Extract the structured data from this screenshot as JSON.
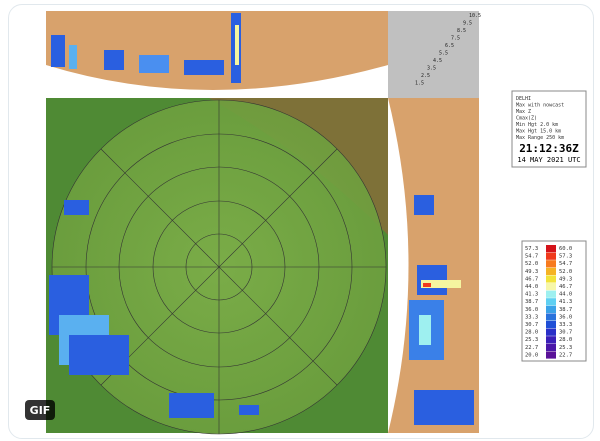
{
  "badge": "GIF",
  "info": {
    "lines": [
      "DELHI",
      "Max with nowcast",
      "Max Z",
      "Cmax(Z)",
      "Min Hgt 2.0 km",
      "Max Hgt 15.0 km",
      "Max Range 250 km"
    ],
    "time": "21:12:36Z",
    "date": "14 MAY 2021 UTC"
  },
  "altitude_labels": [
    "10.5",
    "9.5",
    "8.5",
    "7.5",
    "6.5",
    "5.5",
    "4.5",
    "3.5",
    "2.5",
    "1.5"
  ],
  "legend": {
    "left": [
      "57.3",
      "54.7",
      "52.0",
      "49.3",
      "46.7",
      "44.0",
      "41.3",
      "38.7",
      "36.0",
      "33.3",
      "30.7",
      "28.0",
      "25.3",
      "22.7",
      "20.0"
    ],
    "right": [
      "60.0",
      "57.3",
      "54.7",
      "52.0",
      "49.3",
      "46.7",
      "44.0",
      "41.3",
      "38.7",
      "36.0",
      "33.3",
      "30.7",
      "28.0",
      "25.3",
      "22.7"
    ],
    "colors": [
      "#d4131a",
      "#f03a1c",
      "#f77a1e",
      "#f5b324",
      "#f2e33a",
      "#f7f7a8",
      "#9ef0f0",
      "#5fd0f2",
      "#3aa2e8",
      "#2a72dc",
      "#1f4fd6",
      "#2a30c8",
      "#3a1fb8",
      "#4a17a8",
      "#5a1298"
    ]
  }
}
